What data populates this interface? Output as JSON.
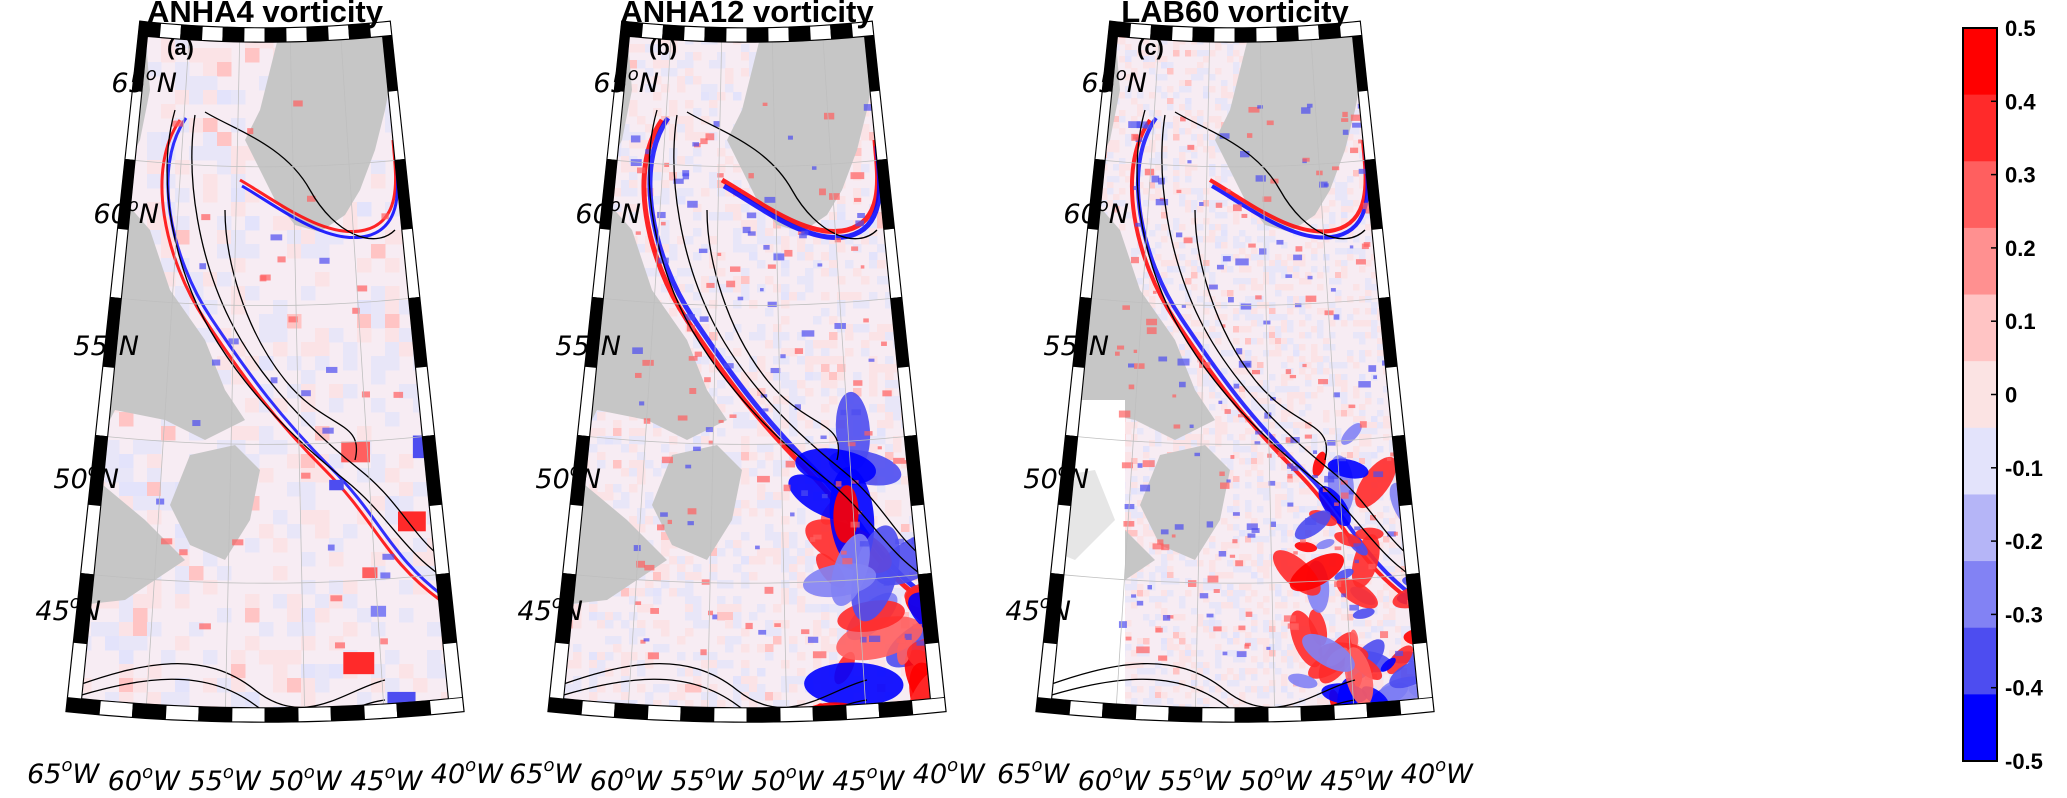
{
  "chart_data": [
    {
      "type": "heatmap",
      "panel_label": "(a)",
      "title": "ANHA4 vorticity",
      "lat_ticks": [
        "65",
        "60",
        "55",
        "50",
        "45"
      ],
      "lon_ticks": [
        "65",
        "60",
        "55",
        "50",
        "45",
        "40"
      ],
      "lat_suffix": "N",
      "lon_suffix": "W",
      "degree_symbol": "o",
      "region": {
        "lon_range": [
          -65,
          -40
        ],
        "lat_range": [
          42,
          67
        ]
      },
      "eddy_intensity": "low"
    },
    {
      "type": "heatmap",
      "panel_label": "(b)",
      "title": "ANHA12 vorticity",
      "lat_ticks": [
        "65",
        "60",
        "55",
        "50",
        "45"
      ],
      "lon_ticks": [
        "65",
        "60",
        "55",
        "50",
        "45",
        "40"
      ],
      "lat_suffix": "N",
      "lon_suffix": "W",
      "degree_symbol": "o",
      "region": {
        "lon_range": [
          -65,
          -40
        ],
        "lat_range": [
          42,
          67
        ]
      },
      "eddy_intensity": "medium"
    },
    {
      "type": "heatmap",
      "panel_label": "(c)",
      "title": "LAB60 vorticity",
      "lat_ticks": [
        "65",
        "60",
        "55",
        "50",
        "45"
      ],
      "lon_ticks": [
        "65",
        "60",
        "55",
        "50",
        "45",
        "40"
      ],
      "lat_suffix": "N",
      "lon_suffix": "W",
      "degree_symbol": "o",
      "region": {
        "lon_range": [
          -65,
          -40
        ],
        "lat_range": [
          42,
          67
        ]
      },
      "eddy_intensity": "high"
    }
  ],
  "colorbar": {
    "ticks": [
      "0.5",
      "0.4",
      "0.3",
      "0.2",
      "0.1",
      "0",
      "-0.1",
      "-0.2",
      "-0.3",
      "-0.4",
      "-0.5"
    ],
    "range": [
      -0.5,
      0.5
    ],
    "colors": [
      "#ff0000",
      "#ff2a2a",
      "#ff5f5f",
      "#ff9090",
      "#ffc4c4",
      "#fbe3e3",
      "#e3e3fb",
      "#b5b5f7",
      "#8282f4",
      "#4d4df0",
      "#0000ff"
    ]
  },
  "colors": {
    "land": "#c6c6c6",
    "ocean": "#ffffff",
    "frame_dark": "#000000",
    "frame_light": "#ffffff",
    "contour": "#000000"
  }
}
